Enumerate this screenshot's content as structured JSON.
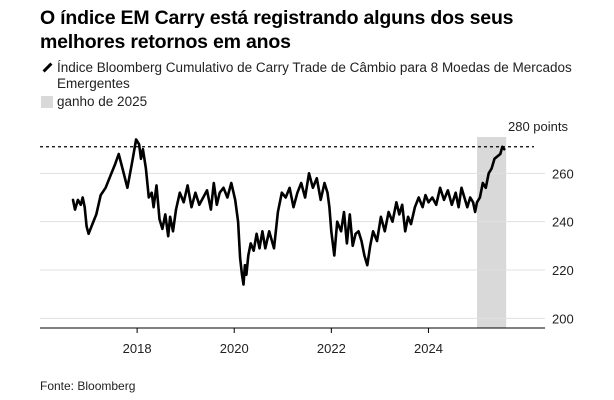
{
  "header": {
    "title": "O índice EM Carry está registrando alguns dos seus melhores retornos em anos"
  },
  "legend": {
    "series_label": "Índice Bloomberg Cumulativo de Carry Trade de Câmbio para 8 Moedas de Mercados Emergentes",
    "shade_label": "ganho de 2025"
  },
  "footer": {
    "source": "Fonte: Bloomberg"
  },
  "chart_data": {
    "type": "line",
    "title": "O índice EM Carry está registrando alguns dos seus melhores retornos em anos",
    "xlabel": "",
    "ylabel": "",
    "x_ticks": [
      "2018",
      "2020",
      "2022",
      "2024"
    ],
    "y_ticks": [
      {
        "value": 200,
        "label": "200"
      },
      {
        "value": 220,
        "label": "220"
      },
      {
        "value": 240,
        "label": "240"
      },
      {
        "value": 260,
        "label": "260"
      },
      {
        "value": 280,
        "label": "280 points"
      }
    ],
    "xlim": [
      2016.0,
      2026.4
    ],
    "ylim": [
      196,
      280
    ],
    "grid": "horizontal",
    "reference_line": {
      "value": 271,
      "style": "dashed"
    },
    "shaded_region": {
      "start": 2025.0,
      "end": 2025.6,
      "label": "ganho de 2025",
      "color": "#d9d9d9"
    },
    "line_color": "#000000",
    "series": [
      {
        "name": "Índice Bloomberg Cumulativo de Carry Trade de Câmbio para 8 Moedas de Mercados Emergentes",
        "x": [
          2016.68,
          2016.72,
          2016.78,
          2016.84,
          2016.88,
          2016.92,
          2016.96,
          2017.0,
          2017.08,
          2017.16,
          2017.25,
          2017.35,
          2017.45,
          2017.55,
          2017.62,
          2017.7,
          2017.8,
          2017.9,
          2017.98,
          2018.04,
          2018.08,
          2018.12,
          2018.18,
          2018.24,
          2018.3,
          2018.34,
          2018.4,
          2018.46,
          2018.52,
          2018.58,
          2018.64,
          2018.68,
          2018.74,
          2018.8,
          2018.88,
          2018.96,
          2019.04,
          2019.12,
          2019.2,
          2019.28,
          2019.36,
          2019.44,
          2019.52,
          2019.58,
          2019.64,
          2019.7,
          2019.78,
          2019.86,
          2019.94,
          2020.02,
          2020.08,
          2020.12,
          2020.16,
          2020.19,
          2020.22,
          2020.25,
          2020.29,
          2020.34,
          2020.4,
          2020.46,
          2020.52,
          2020.58,
          2020.64,
          2020.72,
          2020.82,
          2020.9,
          2020.98,
          2021.06,
          2021.14,
          2021.22,
          2021.3,
          2021.38,
          2021.46,
          2021.54,
          2021.62,
          2021.7,
          2021.78,
          2021.86,
          2021.92,
          2021.96,
          2022.0,
          2022.06,
          2022.12,
          2022.2,
          2022.26,
          2022.32,
          2022.38,
          2022.44,
          2022.5,
          2022.56,
          2022.62,
          2022.68,
          2022.74,
          2022.8,
          2022.86,
          2022.94,
          2023.02,
          2023.1,
          2023.18,
          2023.26,
          2023.34,
          2023.4,
          2023.46,
          2023.52,
          2023.58,
          2023.64,
          2023.72,
          2023.8,
          2023.88,
          2023.94,
          2024.0,
          2024.08,
          2024.16,
          2024.24,
          2024.32,
          2024.4,
          2024.48,
          2024.56,
          2024.62,
          2024.68,
          2024.74,
          2024.8,
          2024.86,
          2024.92,
          2024.96,
          2025.0,
          2025.06,
          2025.12,
          2025.18,
          2025.24,
          2025.3,
          2025.36,
          2025.42,
          2025.48,
          2025.52,
          2025.56
        ],
        "values": [
          249,
          245,
          249,
          247,
          250,
          246,
          238,
          235,
          239,
          243,
          251,
          254,
          259,
          264,
          268,
          262,
          254,
          265,
          274,
          272,
          266,
          270,
          262,
          250,
          252,
          246,
          255,
          241,
          237,
          243,
          234,
          242,
          236,
          245,
          252,
          248,
          255,
          246,
          252,
          247,
          250,
          253,
          245,
          256,
          247,
          252,
          254,
          250,
          256,
          249,
          240,
          225,
          218,
          214,
          222,
          218,
          226,
          231,
          228,
          235,
          229,
          236,
          229,
          236,
          229,
          244,
          252,
          250,
          254,
          246,
          252,
          256,
          250,
          260,
          254,
          258,
          249,
          256,
          252,
          246,
          236,
          226,
          240,
          236,
          244,
          231,
          243,
          230,
          235,
          236,
          232,
          226,
          222,
          230,
          236,
          232,
          242,
          236,
          244,
          240,
          248,
          243,
          247,
          236,
          242,
          239,
          246,
          250,
          246,
          251,
          248,
          250,
          247,
          254,
          249,
          253,
          247,
          252,
          246,
          254,
          250,
          246,
          250,
          248,
          244,
          248,
          250,
          256,
          254,
          260,
          262,
          266,
          267,
          268,
          271,
          270
        ]
      }
    ]
  }
}
